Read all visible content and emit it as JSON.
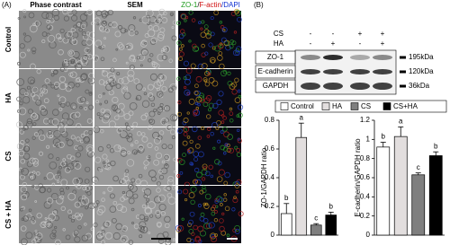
{
  "figure": {
    "panel_a": {
      "label": "(A)",
      "column_headers": [
        "Phase contrast",
        "SEM"
      ],
      "fluor_header": [
        "ZO-1",
        "/",
        "F-actin",
        "/DAPI"
      ],
      "row_labels": [
        "Control",
        "HA",
        "CS",
        "CS + HA"
      ]
    },
    "panel_b": {
      "label": "(B)",
      "treatments": [
        {
          "name": "CS",
          "signs": [
            "-",
            "-",
            "+",
            "+"
          ]
        },
        {
          "name": "HA",
          "signs": [
            "-",
            "+",
            "-",
            "+"
          ]
        }
      ],
      "bands": [
        {
          "name": "ZO-1",
          "size": "195kDa"
        },
        {
          "name": "E-cadherin",
          "size": "120kDa"
        },
        {
          "name": "GAPDH",
          "size": "36kDa"
        }
      ]
    }
  },
  "chart_data": [
    {
      "type": "bar",
      "ylabel": "ZO-1/GAPDH ratio",
      "categories": [
        "Control",
        "HA",
        "CS",
        "CS+HA"
      ],
      "colors": [
        "#ffffff",
        "#e2dede",
        "#7f7f7f",
        "#000000"
      ],
      "values": [
        0.15,
        0.68,
        0.07,
        0.14
      ],
      "errors": [
        0.07,
        0.1,
        0.01,
        0.02
      ],
      "annotations": [
        "b",
        "a",
        "c",
        "b"
      ],
      "ylim": [
        0,
        0.8
      ],
      "yticks": [
        0,
        0.2,
        0.4,
        0.6,
        0.8
      ]
    },
    {
      "type": "bar",
      "ylabel": "E-cadherin/GAPDH ratio",
      "categories": [
        "Control",
        "HA",
        "CS",
        "CS+HA"
      ],
      "colors": [
        "#ffffff",
        "#e2dede",
        "#7f7f7f",
        "#000000"
      ],
      "values": [
        0.92,
        1.03,
        0.63,
        0.83
      ],
      "errors": [
        0.05,
        0.1,
        0.02,
        0.04
      ],
      "annotations": [
        "b",
        "a",
        "c",
        "b"
      ],
      "ylim": [
        0,
        1.2
      ],
      "yticks": [
        0,
        0.2,
        0.4,
        0.6,
        0.8,
        1,
        1.2
      ]
    }
  ]
}
